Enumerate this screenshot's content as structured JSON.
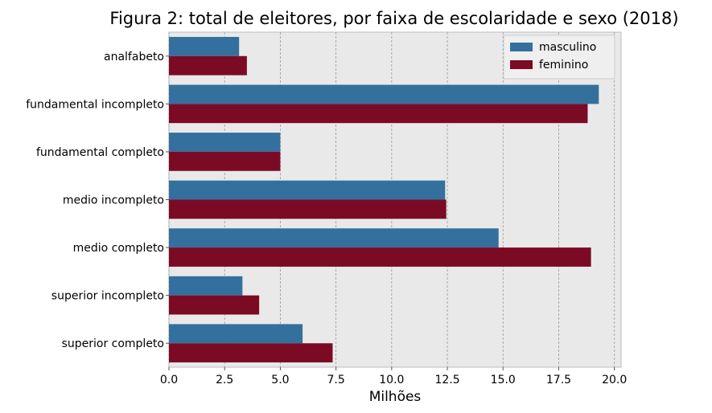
{
  "chart_data": {
    "type": "bar",
    "orientation": "horizontal",
    "title": "Figura 2: total de eleitores, por faixa de escolaridade e sexo (2018)",
    "xlabel": "Milhões",
    "ylabel": "",
    "categories": [
      "analfabeto",
      "fundamental incompleto",
      "fundamental completo",
      "medio incompleto",
      "medio completo",
      "superior incompleto",
      "superior completo"
    ],
    "series": [
      {
        "name": "masculino",
        "color": "#34709d",
        "values": [
          3.15,
          19.3,
          5.0,
          12.4,
          14.8,
          3.3,
          6.0
        ]
      },
      {
        "name": "feminino",
        "color": "#7b0b25",
        "values": [
          3.5,
          18.8,
          5.0,
          12.45,
          18.95,
          4.05,
          7.35
        ]
      }
    ],
    "xlim": [
      0,
      20.3
    ],
    "xticks": [
      0,
      2.5,
      5,
      7.5,
      10,
      12.5,
      15,
      17.5,
      20
    ],
    "xtick_labels": [
      "0.0",
      "2.5",
      "5.0",
      "7.5",
      "10.0",
      "12.5",
      "15.0",
      "17.5",
      "20.0"
    ],
    "grid": true,
    "legend": "top-right"
  }
}
